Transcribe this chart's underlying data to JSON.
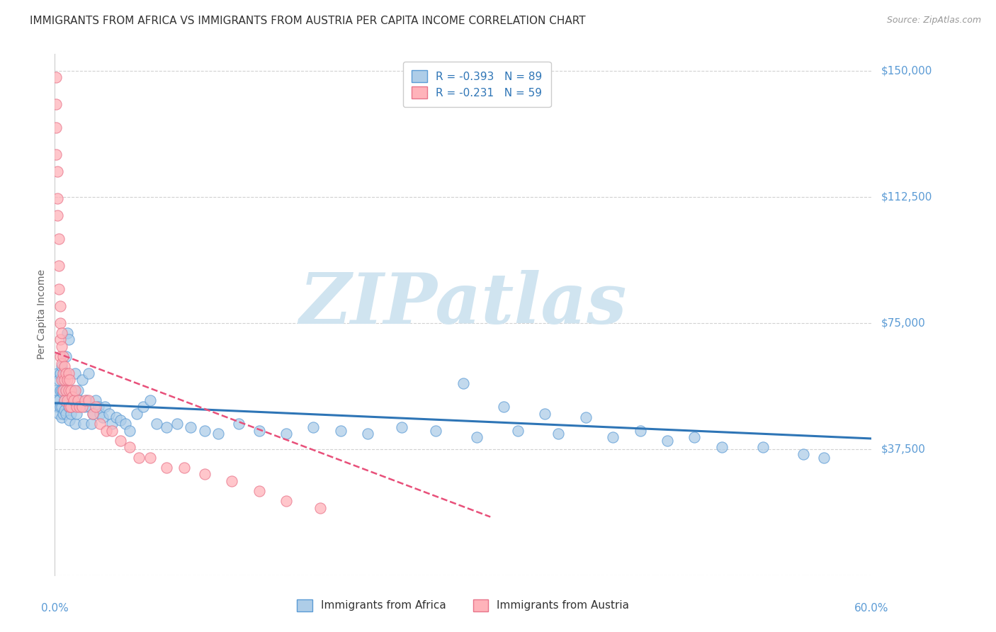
{
  "title": "IMMIGRANTS FROM AFRICA VS IMMIGRANTS FROM AUSTRIA PER CAPITA INCOME CORRELATION CHART",
  "source": "Source: ZipAtlas.com",
  "ylabel": "Per Capita Income",
  "ytick_vals": [
    0,
    37500,
    75000,
    112500,
    150000
  ],
  "ytick_labels": [
    "",
    "$37,500",
    "$75,000",
    "$112,500",
    "$150,000"
  ],
  "xlim": [
    0.0,
    0.6
  ],
  "ylim": [
    0,
    155000
  ],
  "series_africa": {
    "label": "Immigrants from Africa",
    "R": -0.393,
    "N": 89,
    "color": "#aecde8",
    "edge_color": "#5b9bd5",
    "line_color": "#2e75b6",
    "x": [
      0.001,
      0.001,
      0.002,
      0.002,
      0.003,
      0.003,
      0.003,
      0.004,
      0.004,
      0.004,
      0.005,
      0.005,
      0.005,
      0.005,
      0.006,
      0.006,
      0.006,
      0.007,
      0.007,
      0.007,
      0.008,
      0.008,
      0.008,
      0.009,
      0.009,
      0.01,
      0.01,
      0.011,
      0.011,
      0.012,
      0.012,
      0.013,
      0.014,
      0.015,
      0.015,
      0.016,
      0.017,
      0.018,
      0.02,
      0.021,
      0.022,
      0.023,
      0.025,
      0.026,
      0.027,
      0.028,
      0.03,
      0.032,
      0.033,
      0.035,
      0.037,
      0.04,
      0.042,
      0.045,
      0.048,
      0.052,
      0.055,
      0.06,
      0.065,
      0.07,
      0.075,
      0.082,
      0.09,
      0.1,
      0.11,
      0.12,
      0.135,
      0.15,
      0.17,
      0.19,
      0.21,
      0.23,
      0.255,
      0.28,
      0.31,
      0.34,
      0.37,
      0.41,
      0.45,
      0.49,
      0.52,
      0.55,
      0.565,
      0.3,
      0.33,
      0.36,
      0.39,
      0.43,
      0.47
    ],
    "y": [
      55000,
      52000,
      60000,
      50000,
      58000,
      52000,
      48000,
      55000,
      50000,
      60000,
      62000,
      55000,
      50000,
      47000,
      58000,
      54000,
      48000,
      60000,
      52000,
      49000,
      65000,
      55000,
      48000,
      72000,
      55000,
      70000,
      50000,
      52000,
      46000,
      54000,
      48000,
      50000,
      55000,
      45000,
      60000,
      48000,
      55000,
      52000,
      58000,
      45000,
      50000,
      52000,
      60000,
      50000,
      45000,
      48000,
      52000,
      50000,
      48000,
      47000,
      50000,
      48000,
      45000,
      47000,
      46000,
      45000,
      43000,
      48000,
      50000,
      52000,
      45000,
      44000,
      45000,
      44000,
      43000,
      42000,
      45000,
      43000,
      42000,
      44000,
      43000,
      42000,
      44000,
      43000,
      41000,
      43000,
      42000,
      41000,
      40000,
      38000,
      38000,
      36000,
      35000,
      57000,
      50000,
      48000,
      47000,
      43000,
      41000
    ]
  },
  "series_austria": {
    "label": "Immigrants from Austria",
    "R": -0.231,
    "N": 59,
    "color": "#ffb3ba",
    "edge_color": "#e8748a",
    "line_color": "#e8507a",
    "x": [
      0.001,
      0.001,
      0.001,
      0.001,
      0.002,
      0.002,
      0.002,
      0.003,
      0.003,
      0.003,
      0.004,
      0.004,
      0.004,
      0.004,
      0.005,
      0.005,
      0.005,
      0.005,
      0.006,
      0.006,
      0.006,
      0.007,
      0.007,
      0.007,
      0.008,
      0.008,
      0.009,
      0.009,
      0.01,
      0.01,
      0.011,
      0.011,
      0.012,
      0.012,
      0.013,
      0.014,
      0.015,
      0.016,
      0.017,
      0.018,
      0.02,
      0.022,
      0.025,
      0.028,
      0.03,
      0.033,
      0.038,
      0.042,
      0.048,
      0.055,
      0.062,
      0.07,
      0.082,
      0.095,
      0.11,
      0.13,
      0.15,
      0.17,
      0.195
    ],
    "y": [
      148000,
      140000,
      133000,
      125000,
      120000,
      112000,
      107000,
      100000,
      92000,
      85000,
      80000,
      75000,
      70000,
      65000,
      72000,
      68000,
      63000,
      58000,
      65000,
      60000,
      55000,
      62000,
      58000,
      52000,
      60000,
      55000,
      58000,
      52000,
      60000,
      55000,
      58000,
      50000,
      55000,
      50000,
      53000,
      52000,
      55000,
      50000,
      52000,
      50000,
      50000,
      52000,
      52000,
      48000,
      50000,
      45000,
      43000,
      43000,
      40000,
      38000,
      35000,
      35000,
      32000,
      32000,
      30000,
      28000,
      25000,
      22000,
      20000
    ]
  },
  "watermark": "ZIPatlas",
  "watermark_color": "#d0e4f0",
  "background_color": "#ffffff",
  "grid_color": "#cccccc",
  "tick_color": "#5b9bd5",
  "title_color": "#333333",
  "title_fontsize": 11,
  "source_color": "#999999"
}
